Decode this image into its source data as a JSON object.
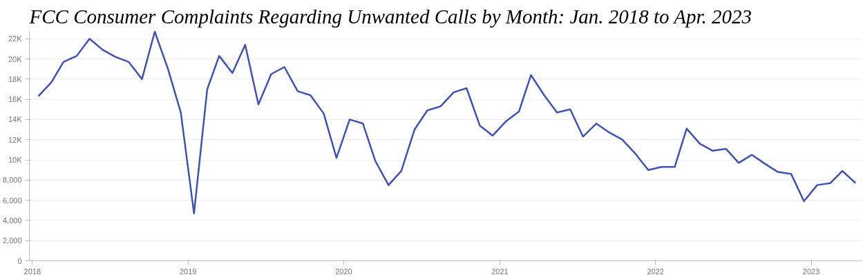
{
  "chart_data": {
    "type": "line",
    "title": "FCC Consumer Complaints Regarding Unwanted Calls by Month: Jan. 2018 to Apr. 2023",
    "x": [
      "2018-01-15",
      "2018-02-15",
      "2018-03-15",
      "2018-04-15",
      "2018-05-15",
      "2018-06-15",
      "2018-07-15",
      "2018-08-15",
      "2018-09-15",
      "2018-10-15",
      "2018-11-15",
      "2018-12-15",
      "2019-01-15",
      "2019-02-15",
      "2019-03-15",
      "2019-04-15",
      "2019-05-15",
      "2019-06-15",
      "2019-07-15",
      "2019-08-15",
      "2019-09-15",
      "2019-10-15",
      "2019-11-15",
      "2019-12-15",
      "2020-01-15",
      "2020-02-15",
      "2020-03-15",
      "2020-04-15",
      "2020-05-15",
      "2020-06-15",
      "2020-07-15",
      "2020-08-15",
      "2020-09-15",
      "2020-10-15",
      "2020-11-15",
      "2020-12-15",
      "2021-01-15",
      "2021-02-15",
      "2021-03-15",
      "2021-04-15",
      "2021-05-15",
      "2021-06-15",
      "2021-07-15",
      "2021-08-15",
      "2021-09-15",
      "2021-10-15",
      "2021-11-15",
      "2021-12-15",
      "2022-01-15",
      "2022-02-15",
      "2022-03-15",
      "2022-04-15",
      "2022-05-15",
      "2022-06-15",
      "2022-07-15",
      "2022-08-15",
      "2022-09-15",
      "2022-10-15",
      "2022-11-15",
      "2022-12-15",
      "2023-01-15",
      "2023-02-15",
      "2023-03-15",
      "2023-04-15"
    ],
    "series": [
      {
        "color": "#3f51b5",
        "values": [
          16300,
          17700,
          19700,
          20300,
          22000,
          20900,
          20200,
          19700,
          18000,
          22700,
          19000,
          14700,
          4700,
          17000,
          20300,
          18600,
          21400,
          15500,
          18500,
          19200,
          16800,
          16400,
          14600,
          10200,
          14000,
          13600,
          9900,
          7500,
          8900,
          13000,
          14900,
          15300,
          16700,
          17100,
          13400,
          12400,
          13800,
          14800,
          18400,
          16400,
          14700,
          15000,
          12300,
          13600,
          12700,
          12000,
          10600,
          9000,
          9300,
          9300,
          13100,
          11600,
          10900,
          11100,
          9700,
          10500,
          9600,
          8800,
          8600,
          5900,
          7500,
          7700,
          8900,
          7700
        ]
      }
    ],
    "xlim": [
      "2017-12-25",
      "2023-04-30"
    ],
    "xticks": [
      {
        "value": "2018-01-01",
        "label": "2018"
      },
      {
        "value": "2019-01-01",
        "label": "2019"
      },
      {
        "value": "2020-01-01",
        "label": "2020"
      },
      {
        "value": "2021-01-01",
        "label": "2021"
      },
      {
        "value": "2022-01-01",
        "label": "2022"
      },
      {
        "value": "2023-01-01",
        "label": "2023"
      }
    ],
    "ylim": [
      0,
      22800
    ],
    "yticks": [
      0,
      {
        "value": 2000,
        "label": "2,000"
      },
      {
        "value": 4000,
        "label": "4,000"
      },
      {
        "value": 6000,
        "label": "6,000"
      },
      {
        "value": 8000,
        "label": "8,000"
      },
      {
        "value": 10000,
        "label": "10K"
      },
      {
        "value": 12000,
        "label": "12K"
      },
      {
        "value": 14000,
        "label": "14K"
      },
      {
        "value": 16000,
        "label": "16K"
      },
      {
        "value": 18000,
        "label": "18K"
      },
      {
        "value": 20000,
        "label": "20K"
      },
      {
        "value": 22000,
        "label": "22K"
      }
    ],
    "grid": "y",
    "marker": "none",
    "line_style": "solid"
  }
}
